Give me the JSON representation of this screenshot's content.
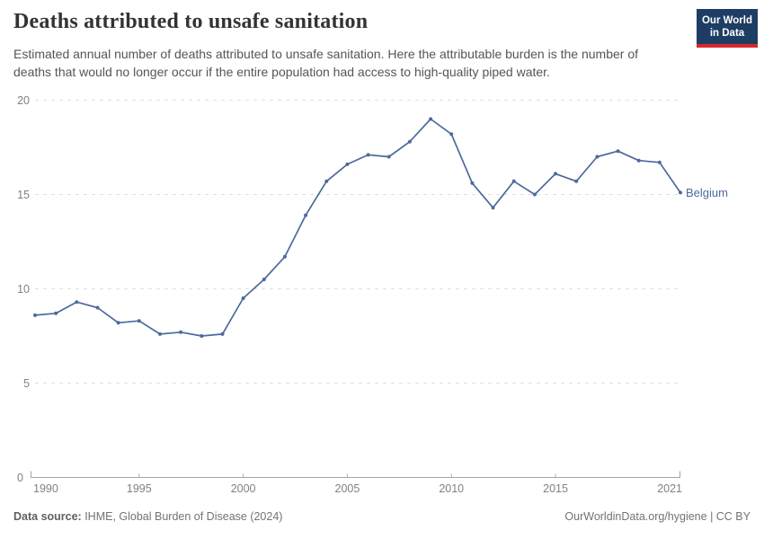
{
  "header": {
    "title": "Deaths attributed to unsafe sanitation",
    "subtitle": "Estimated annual number of deaths attributed to unsafe sanitation. Here the attributable burden is the number of deaths that would no longer occur if the entire population had access to high-quality piped water.",
    "logo": {
      "line1": "Our World",
      "line2": "in Data",
      "bg_color": "#1d3d63",
      "accent_color": "#d7282f"
    }
  },
  "chart_data": {
    "type": "line",
    "title": "Deaths attributed to unsafe sanitation",
    "xlabel": "",
    "ylabel": "",
    "ylim": [
      0,
      20
    ],
    "yticks": [
      0,
      5,
      10,
      15,
      20
    ],
    "xticks": [
      1990,
      1995,
      2000,
      2005,
      2010,
      2015,
      2021
    ],
    "grid": "horizontal-dashed",
    "legend_position": "end-of-line-label",
    "series": [
      {
        "name": "Belgium",
        "color": "#4c6a9c",
        "x": [
          1990,
          1991,
          1992,
          1993,
          1994,
          1995,
          1996,
          1997,
          1998,
          1999,
          2000,
          2001,
          2002,
          2003,
          2004,
          2005,
          2006,
          2007,
          2008,
          2009,
          2010,
          2011,
          2012,
          2013,
          2014,
          2015,
          2016,
          2017,
          2018,
          2019,
          2020,
          2021
        ],
        "values": [
          8.6,
          8.7,
          9.3,
          9.0,
          8.2,
          8.3,
          7.6,
          7.7,
          7.5,
          7.6,
          9.5,
          10.5,
          11.7,
          13.9,
          15.7,
          16.6,
          17.1,
          17.0,
          17.8,
          19.0,
          18.2,
          15.6,
          14.3,
          15.7,
          15.0,
          16.1,
          15.7,
          17.0,
          17.3,
          16.8,
          16.7,
          15.1
        ]
      }
    ]
  },
  "footer": {
    "source_label": "Data source:",
    "source_value": " IHME, Global Burden of Disease (2024)",
    "credit": "OurWorldinData.org/hygiene | CC BY"
  },
  "colors": {
    "line": "#4c6a9c",
    "grid": "#e0e0e0",
    "axis": "#a3a3a3",
    "tick_label": "#818181",
    "title_text": "#333333",
    "subtitle_text": "#555555"
  }
}
